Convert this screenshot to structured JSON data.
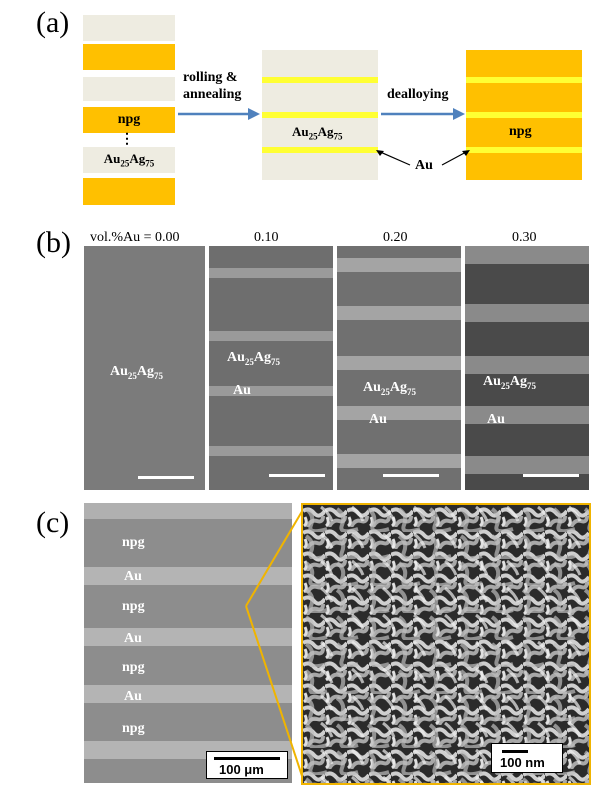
{
  "panel_a": {
    "letter": "(a)",
    "arrow1_label_line1": "rolling &",
    "arrow1_label_line2": "annealing",
    "arrow2_label": "dealloying",
    "stack1_npg": "npg",
    "stack1_dots": "⋮",
    "stack1_alloy_base": "Au",
    "stack1_alloy_sub1": "25",
    "stack1_alloy_mid": "Ag",
    "stack1_alloy_sub2": "75",
    "stack2_alloy_base": "Au",
    "stack2_alloy_sub1": "25",
    "stack2_alloy_mid": "Ag",
    "stack2_alloy_sub2": "75",
    "stack3_npg": "npg",
    "au_pointer_label": "Au",
    "colors": {
      "gold": "#FFC000",
      "beige": "#EEECE1",
      "light_yellow": "#FFFF33",
      "arrow": "#4F81BD"
    }
  },
  "panel_b": {
    "letter": "(b)",
    "headers": [
      "vol.%Au = 0.00",
      "0.10",
      "0.20",
      "0.30"
    ],
    "img1_alloy_base": "Au",
    "img1_alloy_sub1": "25",
    "img1_alloy_mid": "Ag",
    "img1_alloy_sub2": "75",
    "img2_alloy_base": "Au",
    "img2_alloy_sub1": "25",
    "img2_alloy_mid": "Ag",
    "img2_alloy_sub2": "75",
    "img2_au": "Au",
    "img3_alloy_base": "Au",
    "img3_alloy_sub1": "25",
    "img3_alloy_mid": "Ag",
    "img3_alloy_sub2": "75",
    "img3_au": "Au",
    "img4_alloy_base": "Au",
    "img4_alloy_sub1": "25",
    "img4_alloy_mid": "Ag",
    "img4_alloy_sub2": "75",
    "img4_au": "Au"
  },
  "panel_c": {
    "letter": "(c)",
    "layers": [
      "npg",
      "Au",
      "npg",
      "Au",
      "npg",
      "Au",
      "npg"
    ],
    "scale_left": "100 μm",
    "scale_right": "100 nm",
    "inset_border_color": "#F0B400"
  }
}
